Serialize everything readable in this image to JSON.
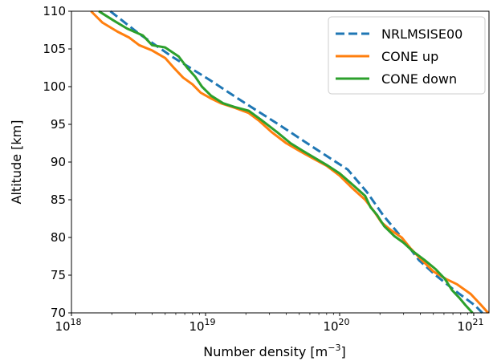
{
  "chart_data": {
    "type": "line",
    "xlabel_main": "Number density [m",
    "xlabel_sup": "−3",
    "xlabel_end": "]",
    "ylabel": "Altitude [km]",
    "xscale": "log",
    "xlim": [
      1e+18,
      1.3e+21
    ],
    "ylim": [
      70,
      110
    ],
    "x_ticks": [
      {
        "value": 1e+18,
        "base": "10",
        "exp": "18"
      },
      {
        "value": 1e+19,
        "base": "10",
        "exp": "19"
      },
      {
        "value": 1e+20,
        "base": "10",
        "exp": "20"
      },
      {
        "value": 1e+21,
        "base": "10",
        "exp": "21"
      }
    ],
    "y_ticks": [
      {
        "value": 70,
        "label": "70"
      },
      {
        "value": 75,
        "label": "75"
      },
      {
        "value": 80,
        "label": "80"
      },
      {
        "value": 85,
        "label": "85"
      },
      {
        "value": 90,
        "label": "90"
      },
      {
        "value": 95,
        "label": "95"
      },
      {
        "value": 100,
        "label": "100"
      },
      {
        "value": 105,
        "label": "105"
      },
      {
        "value": 110,
        "label": "110"
      }
    ],
    "grid": false,
    "legend_position": "top-right",
    "series": [
      {
        "name": "NRLMSISE00",
        "color": "#1f77b4",
        "dashed": true,
        "points": [
          [
            1.95e+18,
            110
          ],
          [
            3.2e+18,
            107
          ],
          [
            5.6e+18,
            104
          ],
          [
            1.05e+19,
            101
          ],
          [
            1.9e+19,
            98
          ],
          [
            3.5e+19,
            95
          ],
          [
            6.3e+19,
            92
          ],
          [
            1.15e+20,
            89
          ],
          [
            1.6e+20,
            86
          ],
          [
            2.1e+20,
            83
          ],
          [
            2.9e+20,
            80
          ],
          [
            3.9e+20,
            77
          ],
          [
            5.2e+20,
            75
          ],
          [
            7.2e+20,
            73
          ],
          [
            1.02e+21,
            71
          ],
          [
            1.16e+21,
            70
          ]
        ]
      },
      {
        "name": "CONE up",
        "color": "#ff7f0e",
        "dashed": false,
        "points": [
          [
            1.4e+18,
            110
          ],
          [
            1.7e+18,
            108.5
          ],
          [
            2.2e+18,
            107.3
          ],
          [
            2.7e+18,
            106.5
          ],
          [
            3.2e+18,
            105.5
          ],
          [
            4e+18,
            104.8
          ],
          [
            5e+18,
            103.8
          ],
          [
            5.8e+18,
            102.5
          ],
          [
            6.8e+18,
            101.2
          ],
          [
            8e+18,
            100.3
          ],
          [
            9.2e+18,
            99.2
          ],
          [
            1.08e+19,
            98.5
          ],
          [
            1.3e+19,
            97.8
          ],
          [
            1.65e+19,
            97.2
          ],
          [
            2.1e+19,
            96.5
          ],
          [
            2.5e+19,
            95.5
          ],
          [
            3.1e+19,
            94
          ],
          [
            4e+19,
            92.5
          ],
          [
            5e+19,
            91.5
          ],
          [
            6.3e+19,
            90.5
          ],
          [
            8e+19,
            89.5
          ],
          [
            1e+20,
            88.2
          ],
          [
            1.25e+20,
            86.5
          ],
          [
            1.55e+20,
            85
          ],
          [
            1.8e+20,
            83.5
          ],
          [
            2.05e+20,
            82
          ],
          [
            2.4e+20,
            81
          ],
          [
            2.9e+20,
            80
          ],
          [
            3.4e+20,
            78.5
          ],
          [
            4.1e+20,
            77
          ],
          [
            5e+20,
            75.5
          ],
          [
            6.2e+20,
            74.5
          ],
          [
            7.5e+20,
            73.8
          ],
          [
            9.5e+20,
            72.5
          ],
          [
            1.14e+21,
            71
          ],
          [
            1.28e+21,
            70
          ]
        ]
      },
      {
        "name": "CONE down",
        "color": "#2ca02c",
        "dashed": false,
        "points": [
          [
            1.6e+18,
            110
          ],
          [
            2.05e+18,
            108.8
          ],
          [
            2.6e+18,
            107.7
          ],
          [
            3.4e+18,
            106.8
          ],
          [
            4e+18,
            105.5
          ],
          [
            5e+18,
            105.2
          ],
          [
            6.3e+18,
            104
          ],
          [
            7.3e+18,
            102.5
          ],
          [
            8.4e+18,
            101.3
          ],
          [
            9.4e+18,
            100
          ],
          [
            1.1e+19,
            98.8
          ],
          [
            1.35e+19,
            97.8
          ],
          [
            1.65e+19,
            97.3
          ],
          [
            2.1e+19,
            96.8
          ],
          [
            2.6e+19,
            95.6
          ],
          [
            3.4e+19,
            94
          ],
          [
            4.3e+19,
            92.5
          ],
          [
            5.3e+19,
            91.5
          ],
          [
            6.6e+19,
            90.5
          ],
          [
            8.2e+19,
            89.5
          ],
          [
            1e+20,
            88.5
          ],
          [
            1.25e+20,
            87
          ],
          [
            1.55e+20,
            85.5
          ],
          [
            1.7e+20,
            84
          ],
          [
            1.9e+20,
            83
          ],
          [
            2.15e+20,
            81.5
          ],
          [
            2.55e+20,
            80.2
          ],
          [
            3e+20,
            79.3
          ],
          [
            3.5e+20,
            78.2
          ],
          [
            4.3e+20,
            77
          ],
          [
            5.2e+20,
            75.8
          ],
          [
            6.1e+20,
            74.5
          ],
          [
            6.9e+20,
            73
          ],
          [
            7.8e+20,
            72
          ],
          [
            8.7e+20,
            71
          ],
          [
            9.8e+20,
            70
          ]
        ]
      }
    ]
  }
}
